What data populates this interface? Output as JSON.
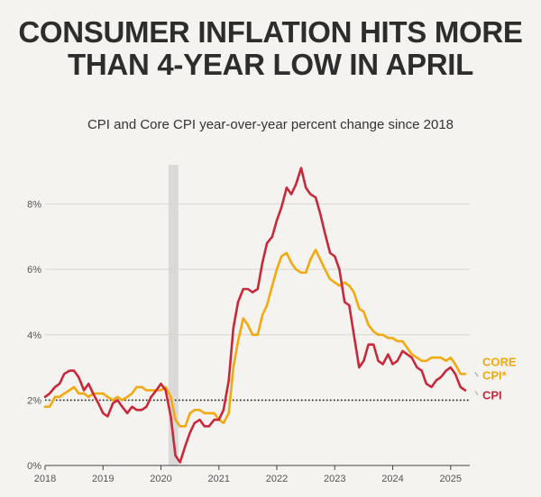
{
  "chart_data": {
    "type": "line",
    "title": "CONSUMER INFLATION HITS MORE THAN 4-YEAR LOW IN APRIL",
    "subtitle": "CPI and Core CPI year-over-year percent change since 2018",
    "xlabel": "",
    "ylabel": "",
    "xlim": [
      2018,
      2025.33
    ],
    "ylim": [
      0,
      9.2
    ],
    "x_ticks": [
      2018,
      2019,
      2020,
      2021,
      2022,
      2023,
      2024,
      2025
    ],
    "x_tick_labels": [
      "2018",
      "2019",
      "2020",
      "2021",
      "2022",
      "2023",
      "2024",
      "2025"
    ],
    "y_ticks": [
      0,
      2,
      4,
      6,
      8
    ],
    "y_tick_labels": [
      "0%",
      "2%",
      "4%",
      "6%",
      "8%"
    ],
    "reference_line": {
      "y": 2,
      "style": "dotted"
    },
    "recession_band": {
      "start": 2020.13,
      "end": 2020.3
    },
    "grid": "horizontal",
    "legend": "direct-labels-right",
    "series": [
      {
        "name": "CORE CPI*",
        "color": "#f2a90f",
        "x": [
          2018.0,
          2018.08,
          2018.17,
          2018.25,
          2018.33,
          2018.42,
          2018.5,
          2018.58,
          2018.67,
          2018.75,
          2018.83,
          2018.92,
          2019.0,
          2019.08,
          2019.17,
          2019.25,
          2019.33,
          2019.42,
          2019.5,
          2019.58,
          2019.67,
          2019.75,
          2019.83,
          2019.92,
          2020.0,
          2020.08,
          2020.17,
          2020.25,
          2020.33,
          2020.42,
          2020.5,
          2020.58,
          2020.67,
          2020.75,
          2020.83,
          2020.92,
          2021.0,
          2021.08,
          2021.17,
          2021.25,
          2021.33,
          2021.42,
          2021.5,
          2021.58,
          2021.67,
          2021.75,
          2021.83,
          2021.92,
          2022.0,
          2022.08,
          2022.17,
          2022.25,
          2022.33,
          2022.42,
          2022.5,
          2022.58,
          2022.67,
          2022.75,
          2022.83,
          2022.92,
          2023.0,
          2023.08,
          2023.17,
          2023.25,
          2023.33,
          2023.42,
          2023.5,
          2023.58,
          2023.67,
          2023.75,
          2023.83,
          2023.92,
          2024.0,
          2024.08,
          2024.17,
          2024.25,
          2024.33,
          2024.42,
          2024.5,
          2024.58,
          2024.67,
          2024.75,
          2024.83,
          2024.92,
          2025.0,
          2025.08,
          2025.17,
          2025.25
        ],
        "values": [
          1.8,
          1.8,
          2.1,
          2.1,
          2.2,
          2.3,
          2.4,
          2.2,
          2.2,
          2.1,
          2.2,
          2.2,
          2.2,
          2.1,
          2.0,
          2.1,
          2.0,
          2.1,
          2.2,
          2.4,
          2.4,
          2.3,
          2.3,
          2.3,
          2.3,
          2.4,
          2.1,
          1.4,
          1.2,
          1.2,
          1.6,
          1.7,
          1.7,
          1.6,
          1.6,
          1.6,
          1.4,
          1.3,
          1.6,
          3.0,
          3.8,
          4.5,
          4.3,
          4.0,
          4.0,
          4.6,
          4.9,
          5.5,
          6.0,
          6.4,
          6.5,
          6.2,
          6.0,
          5.9,
          5.9,
          6.3,
          6.6,
          6.3,
          6.0,
          5.7,
          5.6,
          5.5,
          5.6,
          5.5,
          5.3,
          4.8,
          4.7,
          4.3,
          4.1,
          4.0,
          4.0,
          3.9,
          3.9,
          3.8,
          3.8,
          3.6,
          3.4,
          3.3,
          3.2,
          3.2,
          3.3,
          3.3,
          3.3,
          3.2,
          3.3,
          3.1,
          2.8,
          2.8
        ]
      },
      {
        "name": "CPI",
        "color": "#c8283a",
        "x": [
          2018.0,
          2018.08,
          2018.17,
          2018.25,
          2018.33,
          2018.42,
          2018.5,
          2018.58,
          2018.67,
          2018.75,
          2018.83,
          2018.92,
          2019.0,
          2019.08,
          2019.17,
          2019.25,
          2019.33,
          2019.42,
          2019.5,
          2019.58,
          2019.67,
          2019.75,
          2019.83,
          2019.92,
          2020.0,
          2020.08,
          2020.17,
          2020.25,
          2020.33,
          2020.42,
          2020.5,
          2020.58,
          2020.67,
          2020.75,
          2020.83,
          2020.92,
          2021.0,
          2021.08,
          2021.17,
          2021.25,
          2021.33,
          2021.42,
          2021.5,
          2021.58,
          2021.67,
          2021.75,
          2021.83,
          2021.92,
          2022.0,
          2022.08,
          2022.17,
          2022.25,
          2022.33,
          2022.42,
          2022.5,
          2022.58,
          2022.67,
          2022.75,
          2022.83,
          2022.92,
          2023.0,
          2023.08,
          2023.17,
          2023.25,
          2023.33,
          2023.42,
          2023.5,
          2023.58,
          2023.67,
          2023.75,
          2023.83,
          2023.92,
          2024.0,
          2024.08,
          2024.17,
          2024.25,
          2024.33,
          2024.42,
          2024.5,
          2024.58,
          2024.67,
          2024.75,
          2024.83,
          2024.92,
          2025.0,
          2025.08,
          2025.17,
          2025.25
        ],
        "values": [
          2.1,
          2.2,
          2.4,
          2.5,
          2.8,
          2.9,
          2.9,
          2.7,
          2.3,
          2.5,
          2.2,
          1.9,
          1.6,
          1.5,
          1.9,
          2.0,
          1.8,
          1.6,
          1.8,
          1.7,
          1.7,
          1.8,
          2.1,
          2.3,
          2.5,
          2.3,
          1.5,
          0.3,
          0.1,
          0.6,
          1.0,
          1.3,
          1.4,
          1.2,
          1.2,
          1.4,
          1.4,
          1.7,
          2.6,
          4.2,
          5.0,
          5.4,
          5.4,
          5.3,
          5.4,
          6.2,
          6.8,
          7.0,
          7.5,
          7.9,
          8.5,
          8.3,
          8.6,
          9.1,
          8.5,
          8.3,
          8.2,
          7.7,
          7.1,
          6.5,
          6.4,
          6.0,
          5.0,
          4.9,
          4.0,
          3.0,
          3.2,
          3.7,
          3.7,
          3.2,
          3.1,
          3.4,
          3.1,
          3.2,
          3.5,
          3.4,
          3.3,
          3.0,
          2.9,
          2.5,
          2.4,
          2.6,
          2.7,
          2.9,
          3.0,
          2.8,
          2.4,
          2.3
        ]
      }
    ]
  }
}
